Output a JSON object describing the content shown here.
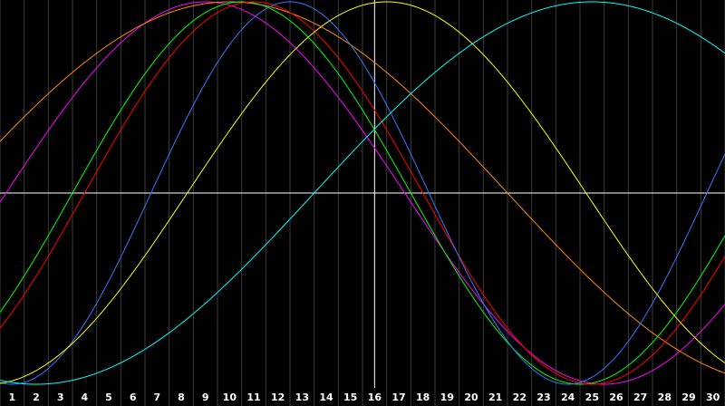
{
  "chart_data": {
    "type": "line",
    "title": "",
    "xlabel": "",
    "ylabel": "",
    "xlim": [
      0.5,
      30.5
    ],
    "ylim": [
      -1,
      1
    ],
    "x_ticks": [
      "1",
      "2",
      "3",
      "4",
      "5",
      "6",
      "7",
      "8",
      "9",
      "10",
      "11",
      "12",
      "13",
      "14",
      "15",
      "16",
      "17",
      "18",
      "19",
      "20",
      "21",
      "22",
      "23",
      "24",
      "25",
      "26",
      "27",
      "28",
      "29",
      "30"
    ],
    "marker_x": 16,
    "midline_y": 0,
    "grid": true,
    "legend": "none",
    "series": [
      {
        "color": "#ff00ff",
        "period": 33,
        "peak_x": 9.0
      },
      {
        "color": "#ff8800",
        "period": 46,
        "peak_x": 10.0
      },
      {
        "color": "#00ff00",
        "period": 28,
        "peak_x": 10.5
      },
      {
        "color": "#ff0000",
        "period": 28,
        "peak_x": 11.0
      },
      {
        "color": "#3377ff",
        "period": 23,
        "peak_x": 12.5
      },
      {
        "color": "#ffff00",
        "period": 33,
        "peak_x": 16.5
      },
      {
        "color": "#00ffff",
        "period": 46,
        "peak_x": 25.0
      }
    ]
  }
}
